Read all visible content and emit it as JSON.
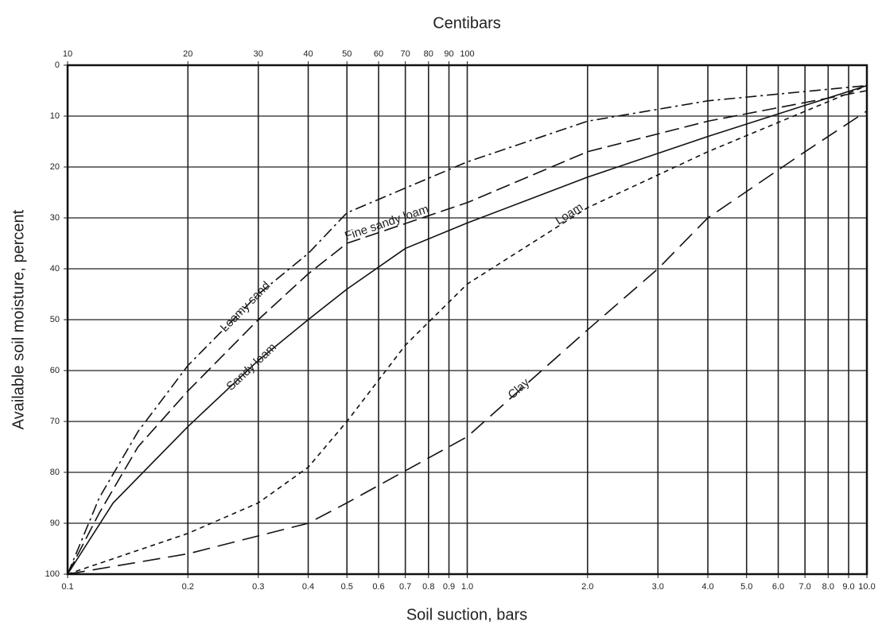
{
  "chart_data": {
    "type": "line",
    "title": "Centibars",
    "x_label": "Soil suction, bars",
    "y_label": "Available soil moisture, percent",
    "x_log": true,
    "xlim": [
      0.1,
      10
    ],
    "xticks": [
      0.1,
      0.2,
      0.3,
      0.4,
      0.5,
      0.6,
      0.7,
      0.8,
      0.9,
      {
        "value": 1,
        "label": "1.0"
      },
      {
        "value": 2,
        "label": "2.0"
      },
      {
        "value": 3,
        "label": "3.0"
      },
      {
        "value": 4,
        "label": "4.0"
      },
      {
        "value": 5,
        "label": "5.0"
      },
      {
        "value": 6,
        "label": "6.0"
      },
      {
        "value": 7,
        "label": "7.0"
      },
      {
        "value": 8,
        "label": "8.0"
      },
      {
        "value": 9,
        "label": "9.0"
      },
      {
        "value": 10,
        "label": "10.0"
      }
    ],
    "x2lim": [
      10,
      1000
    ],
    "x2ticks": [
      10,
      20,
      30,
      40,
      50,
      60,
      70,
      80,
      90,
      100
    ],
    "ylim": [
      100,
      0
    ],
    "yticks": [
      0,
      10,
      20,
      30,
      40,
      50,
      60,
      70,
      80,
      90,
      100
    ],
    "grid": true,
    "series": [
      {
        "name": "Loamy sand",
        "color": "#111111",
        "x": [
          0.1,
          0.12,
          0.15,
          0.2,
          0.3,
          0.4,
          0.5,
          1,
          2,
          4,
          10
        ],
        "values": [
          100,
          85,
          72,
          59,
          45,
          37,
          29,
          19,
          11,
          7,
          4
        ]
      },
      {
        "name": "Fine sandy loam",
        "color": "#111111",
        "x": [
          0.1,
          0.12,
          0.15,
          0.2,
          0.3,
          0.4,
          0.5,
          1,
          2,
          4,
          10
        ],
        "values": [
          100,
          88,
          75,
          64,
          50,
          41,
          35,
          27,
          17,
          11,
          5
        ]
      },
      {
        "name": "Sandy loam",
        "color": "#111111",
        "x": [
          0.1,
          0.13,
          0.2,
          0.3,
          0.4,
          0.5,
          0.7,
          1,
          2,
          4,
          10
        ],
        "values": [
          100,
          86,
          71,
          58,
          50,
          44,
          36,
          31,
          22,
          14,
          4
        ]
      },
      {
        "name": "Loam",
        "color": "#111111",
        "x": [
          0.1,
          0.2,
          0.3,
          0.4,
          0.5,
          0.7,
          1,
          2,
          4,
          10
        ],
        "values": [
          100,
          92,
          86,
          79,
          70,
          55,
          43,
          28,
          17,
          4
        ]
      },
      {
        "name": "Clay",
        "color": "#111111",
        "x": [
          0.1,
          0.2,
          0.4,
          0.5,
          1,
          2,
          3,
          4,
          7,
          10
        ],
        "values": [
          100,
          96,
          90,
          86,
          73,
          52,
          40,
          30,
          17,
          9
        ]
      }
    ]
  }
}
